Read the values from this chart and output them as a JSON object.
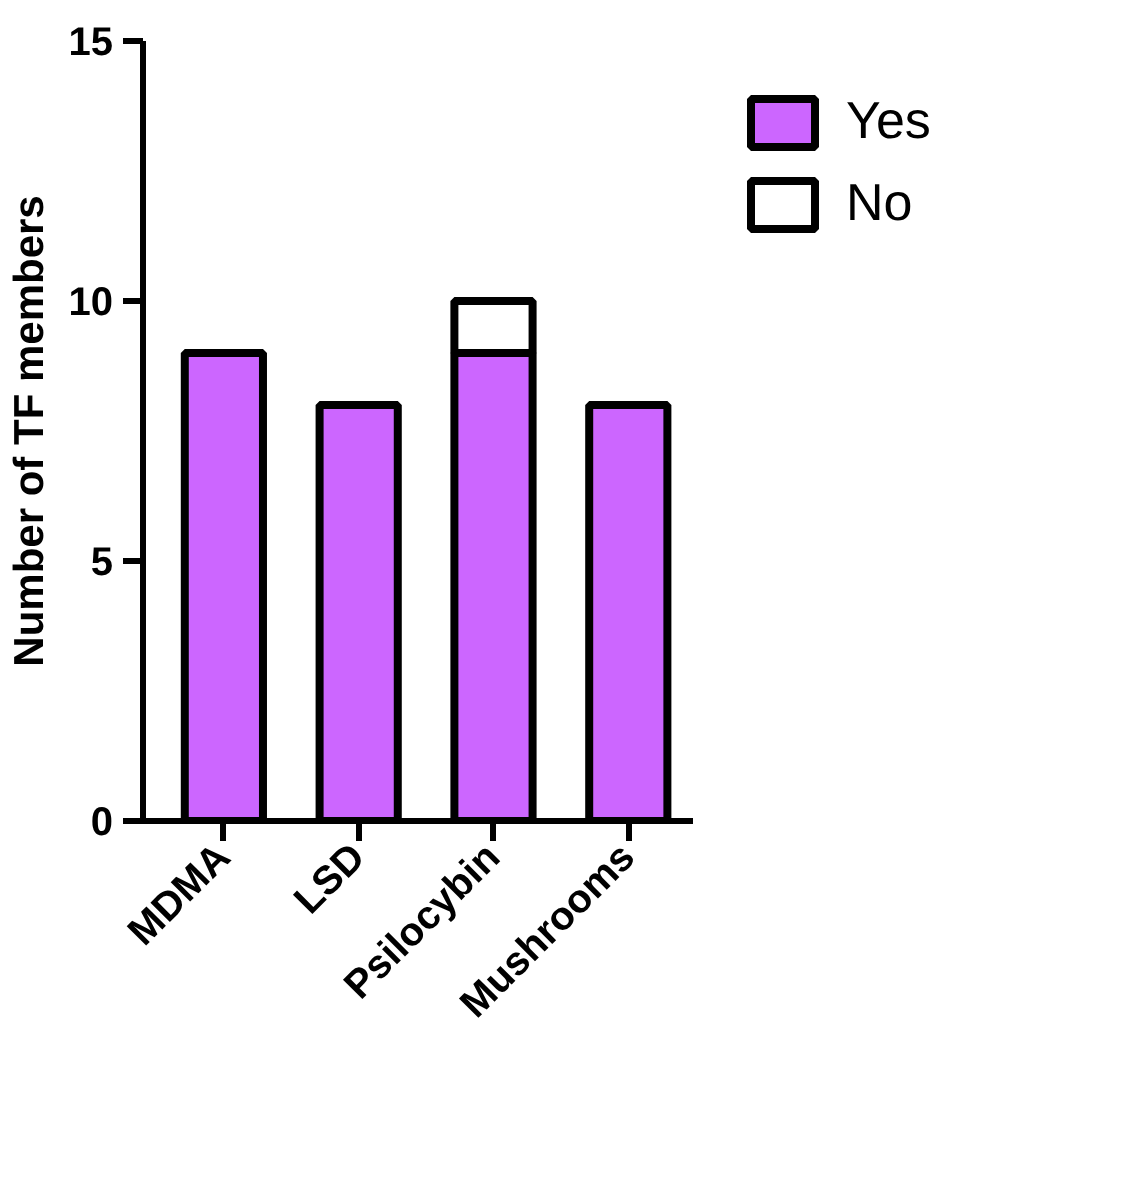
{
  "chart_data": {
    "type": "bar",
    "stacked": true,
    "ylabel": "Number of TF members",
    "categories": [
      "MDMA",
      "LSD",
      "Psilocybin",
      "Mushrooms"
    ],
    "series": [
      {
        "name": "Yes",
        "color": "#cc66ff",
        "values": [
          9,
          8,
          9,
          8
        ]
      },
      {
        "name": "No",
        "color": "#ffffff",
        "values": [
          0,
          0,
          1,
          0
        ]
      }
    ],
    "ylim": [
      0,
      15
    ],
    "yticks": [
      0,
      5,
      10,
      15
    ],
    "grid": false,
    "legend": "right"
  }
}
